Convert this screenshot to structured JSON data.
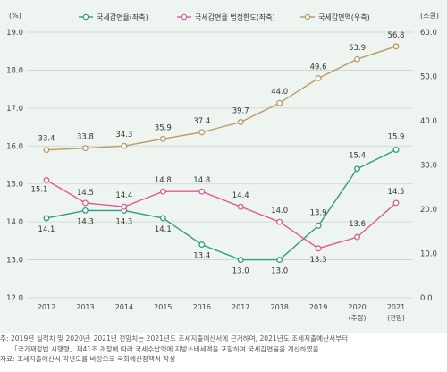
{
  "chart_data": {
    "type": "line",
    "title": "",
    "categories": [
      "2012",
      "2013",
      "2014",
      "2015",
      "2016",
      "2017",
      "2018",
      "2019",
      "2020",
      "2021"
    ],
    "category_sublabels": [
      "",
      "",
      "",
      "",
      "",
      "",
      "",
      "",
      "(추정)",
      "(전망)"
    ],
    "y_left": {
      "unit": "(%)",
      "min": 12.0,
      "max": 19.0,
      "ticks": [
        "19.0",
        "18.0",
        "17.0",
        "16.0",
        "15.0",
        "14.0",
        "13.0",
        "12.0"
      ]
    },
    "y_right": {
      "unit": "(조원)",
      "min": 0,
      "max": 60,
      "ticks": [
        "60.0",
        "50.0",
        "40.0",
        "30.0",
        "20.0",
        "10.0",
        "0.0"
      ]
    },
    "grid": "horizontal",
    "legend_position": "top",
    "series": [
      {
        "name": "국세감면율(좌축)",
        "axis": "left",
        "color": "#2e9a86",
        "values": [
          14.1,
          14.3,
          14.3,
          14.1,
          13.4,
          13.0,
          13.0,
          13.9,
          15.4,
          15.9
        ],
        "labels": [
          "14.1",
          "14.3",
          "14.3",
          "14.1",
          "13.4",
          "13.0",
          "13.0",
          "13.9",
          "15.4",
          "15.9"
        ]
      },
      {
        "name": "국세감면율 법정한도(좌축)",
        "axis": "left",
        "color": "#e0599a",
        "values": [
          15.1,
          14.5,
          14.4,
          14.8,
          14.8,
          14.4,
          14.0,
          13.3,
          13.6,
          14.5
        ],
        "labels": [
          "15.1",
          "14.5",
          "14.4",
          "14.8",
          "14.8",
          "14.4",
          "14.0",
          "13.3",
          "13.6",
          "14.5"
        ]
      },
      {
        "name": "국세감면액(우축)",
        "axis": "right",
        "color": "#b99a66",
        "values": [
          33.4,
          33.8,
          34.3,
          35.9,
          37.4,
          39.7,
          44.0,
          49.6,
          53.9,
          56.8
        ],
        "labels": [
          "33.4",
          "33.8",
          "34.3",
          "35.9",
          "37.4",
          "39.7",
          "44.0",
          "49.6",
          "53.9",
          "56.8"
        ]
      }
    ]
  },
  "notes": {
    "line1": "주: 2019년 실적치 및 2020년· 2021년 전망치는 2021년도 조세지출예산서에 근거하며, 2021년도 조세지출예산서부터",
    "line2": "「국가재정법 시행령」제41조 개정에 따라 국세수납액에 지방소비세액을 포함하여 국세감면율을 계산하였음",
    "line3": "자료: 조세지출예산서 각년도를 바탕으로 국회예산정책처 작성"
  }
}
